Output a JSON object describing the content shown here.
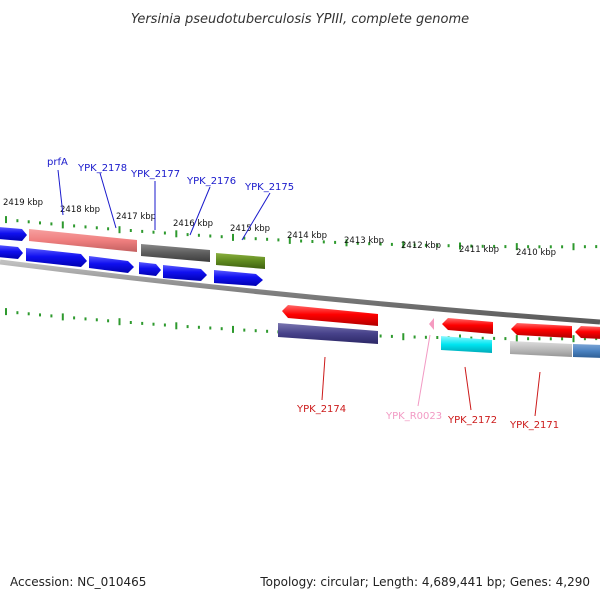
{
  "title": "Yersinia pseudotuberculosis YPIII, complete genome",
  "accession": "Accession: NC_010465",
  "summary": "Topology: circular; Length: 4,689,441 bp; Genes: 4,290",
  "colors": {
    "tick": "#2e9a2e",
    "backbone": "#8a8a8a",
    "label_blue": "#1a1acc",
    "label_red": "#cc1a1a",
    "label_pink": "#f29ac4"
  },
  "kbp_labels": [
    "2419 kbp",
    "2418 kbp",
    "2417 kbp",
    "2416 kbp",
    "2415 kbp",
    "2414 kbp",
    "2413 kbp",
    "2412 kbp",
    "2411 kbp",
    "2410 kbp"
  ],
  "gene_labels_top": [
    {
      "name": "prfA",
      "color": "#1a1acc"
    },
    {
      "name": "YPK_2178",
      "color": "#1a1acc"
    },
    {
      "name": "YPK_2177",
      "color": "#1a1acc"
    },
    {
      "name": "YPK_2176",
      "color": "#1a1acc"
    },
    {
      "name": "YPK_2175",
      "color": "#1a1acc"
    }
  ],
  "gene_labels_bottom": [
    {
      "name": "YPK_2174",
      "color": "#cc1a1a"
    },
    {
      "name": "YPK_R0023",
      "color": "#f29ac4"
    },
    {
      "name": "YPK_2172",
      "color": "#cc1a1a"
    },
    {
      "name": "YPK_2171",
      "color": "#cc1a1a"
    }
  ]
}
